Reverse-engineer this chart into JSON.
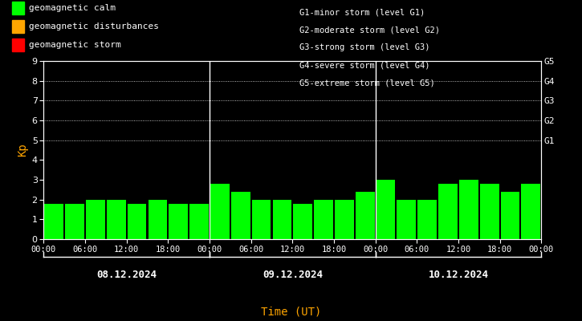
{
  "background_color": "#000000",
  "plot_bg_color": "#000000",
  "bar_color_calm": "#00ff00",
  "bar_color_disturbance": "#ffa500",
  "bar_color_storm": "#ff0000",
  "xlabel_color": "#ffa500",
  "ylabel_color": "#ffa500",
  "tick_color": "#ffffff",
  "legend_text_color": "#ffffff",
  "date_label_color": "#ffffff",
  "right_label_color": "#ffffff",
  "kp_values": [
    1.8,
    1.8,
    2.0,
    2.0,
    1.8,
    2.0,
    1.8,
    1.8,
    2.8,
    2.4,
    2.0,
    2.0,
    1.8,
    2.0,
    2.0,
    2.4,
    3.0,
    2.0,
    2.0,
    2.8,
    3.0,
    2.8,
    2.4,
    2.8
  ],
  "num_days": 3,
  "bars_per_day": 8,
  "ylim": [
    0,
    9
  ],
  "yticks": [
    0,
    1,
    2,
    3,
    4,
    5,
    6,
    7,
    8,
    9
  ],
  "day_labels": [
    "08.12.2024",
    "09.12.2024",
    "10.12.2024"
  ],
  "time_labels": [
    "00:00",
    "06:00",
    "12:00",
    "18:00",
    "00:00"
  ],
  "xlabel": "Time (UT)",
  "ylabel": "Kp",
  "right_axis_labels": [
    "G1",
    "G2",
    "G3",
    "G4",
    "G5"
  ],
  "right_axis_values": [
    5,
    6,
    7,
    8,
    9
  ],
  "dotted_y_values": [
    5,
    6,
    7,
    8,
    9
  ],
  "legend_items": [
    {
      "label": "geomagnetic calm",
      "color": "#00ff00"
    },
    {
      "label": "geomagnetic disturbances",
      "color": "#ffa500"
    },
    {
      "label": "geomagnetic storm",
      "color": "#ff0000"
    }
  ],
  "storm_labels": [
    "G1-minor storm (level G1)",
    "G2-moderate storm (level G2)",
    "G3-strong storm (level G3)",
    "G4-severe storm (level G4)",
    "G5-extreme storm (level G5)"
  ]
}
